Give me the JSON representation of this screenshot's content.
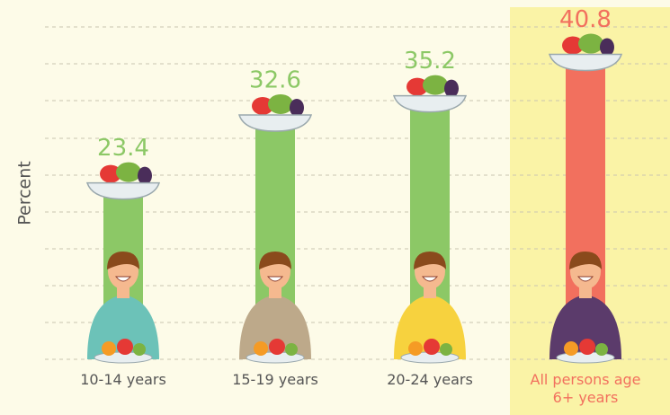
{
  "chart_data": {
    "type": "bar",
    "y_label": "Percent",
    "categories": [
      "10-14 years",
      "15-19 years",
      "20-24 years",
      "All persons age 6+ years"
    ],
    "values": [
      23.4,
      32.6,
      35.2,
      40.8
    ],
    "colors": [
      "#8cc866",
      "#8cc866",
      "#8cc866",
      "#f2705e"
    ],
    "ylim": [
      0,
      45
    ]
  }
}
